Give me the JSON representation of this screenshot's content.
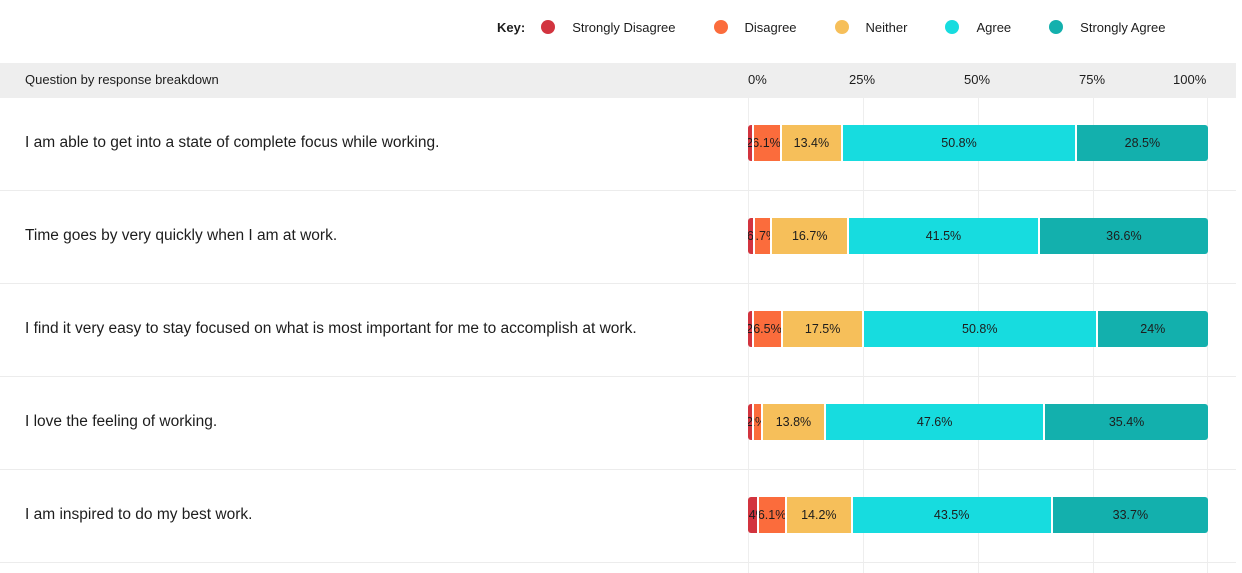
{
  "legend": {
    "title": "Key:",
    "items": [
      {
        "label": "Strongly Disagree",
        "color": "#d2343f"
      },
      {
        "label": "Disagree",
        "color": "#fb6c3c"
      },
      {
        "label": "Neither",
        "color": "#f6bf5a"
      },
      {
        "label": "Agree",
        "color": "#17dcdf"
      },
      {
        "label": "Strongly Agree",
        "color": "#13b0ad"
      }
    ]
  },
  "header": {
    "label": "Question by response breakdown"
  },
  "chart_data": {
    "type": "bar",
    "stacked": true,
    "orientation": "horizontal",
    "xlim": [
      0,
      100
    ],
    "x_ticks": [
      "0%",
      "25%",
      "50%",
      "75%",
      "100%"
    ],
    "grid": true,
    "legend_position": "top-right",
    "categories": [
      "I am able to get into a state of complete focus while working.",
      "Time goes by very quickly when I am at work.",
      "I find it very easy to stay focused on what is most important for me to accomplish at work.",
      "I love the feeling of working.",
      "I am inspired to do my best work."
    ],
    "series": [
      {
        "name": "Strongly Disagree",
        "values": [
          1.2,
          1.6,
          1.2,
          1.2,
          2.4
        ],
        "labels": [
          "1.2%",
          "1.6%",
          "1.2%",
          "1.2%",
          "2.4%"
        ]
      },
      {
        "name": "Disagree",
        "values": [
          6.1,
          3.7,
          6.5,
          2,
          6.1
        ],
        "labels": [
          "6.1%",
          "3.7%",
          "6.5%",
          "2%",
          "6.1%"
        ]
      },
      {
        "name": "Neither",
        "values": [
          13.4,
          16.7,
          17.5,
          13.8,
          14.2
        ],
        "labels": [
          "13.4%",
          "16.7%",
          "17.5%",
          "13.8%",
          "14.2%"
        ]
      },
      {
        "name": "Agree",
        "values": [
          50.8,
          41.5,
          50.8,
          47.6,
          43.5
        ],
        "labels": [
          "50.8%",
          "41.5%",
          "50.8%",
          "47.6%",
          "43.5%"
        ]
      },
      {
        "name": "Strongly Agree",
        "values": [
          28.5,
          36.6,
          24,
          35.4,
          33.7
        ],
        "labels": [
          "28.5%",
          "36.6%",
          "24%",
          "35.4%",
          "33.7%"
        ]
      }
    ]
  }
}
